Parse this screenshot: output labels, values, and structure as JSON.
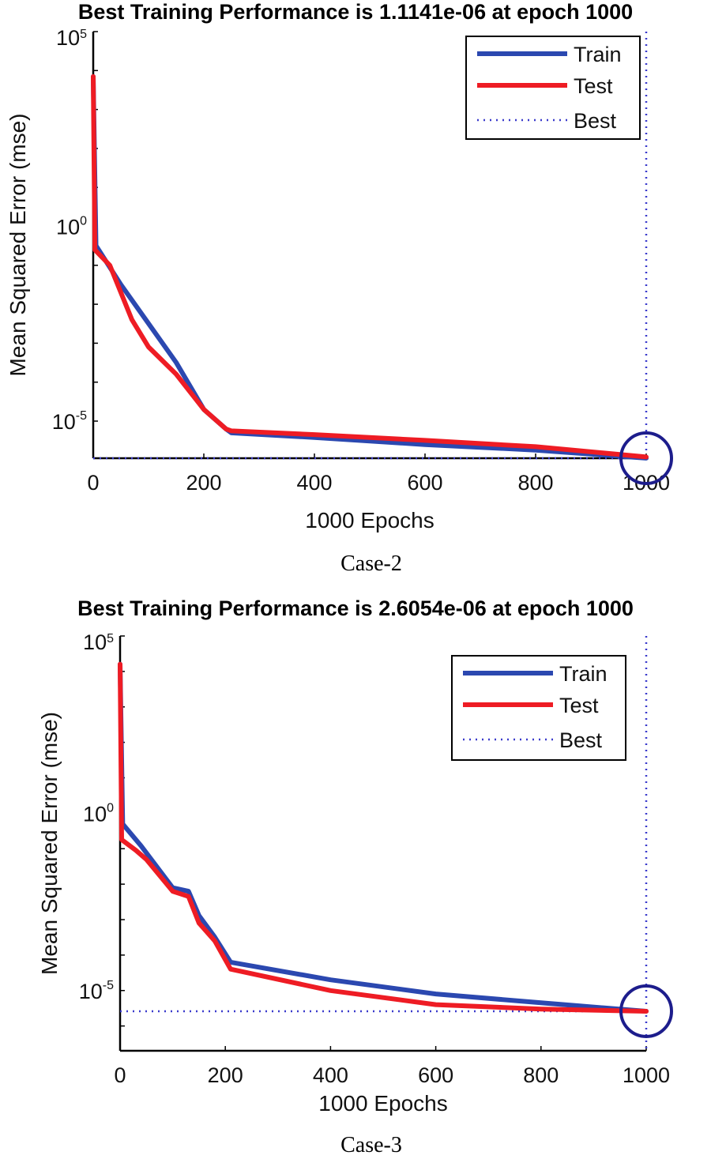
{
  "chart_data": [
    {
      "type": "line",
      "title": "Best Training Performance is 1.1141e-06 at epoch 1000",
      "xlabel": "1000 Epochs",
      "ylabel": "Mean Squared Error  (mse)",
      "caption": "Case-2",
      "yscale": "log",
      "xlim": [
        0,
        1000
      ],
      "ylim": [
        1.1141e-06,
        100000.0
      ],
      "xticks": [
        "0",
        "200",
        "400",
        "600",
        "800",
        "1000"
      ],
      "xtick_values": [
        0,
        200,
        400,
        600,
        800,
        1000
      ],
      "yticks": [
        {
          "base": "10",
          "exp": "5",
          "value": 100000.0
        },
        {
          "base": "10",
          "exp": "0",
          "value": 1
        },
        {
          "base": "10",
          "exp": "-5",
          "value": 1e-05
        }
      ],
      "legend": {
        "position": "top-right",
        "entries": [
          "Train",
          "Test",
          "Best"
        ]
      },
      "best": {
        "epoch": 1000,
        "value": 1.1141e-06
      },
      "colors": {
        "train": "#2b48b0",
        "test": "#ee1c24",
        "best": "#3a3acc",
        "circle": "#1d1d8c"
      },
      "series": [
        {
          "name": "Train",
          "x": [
            0,
            5,
            50,
            100,
            150,
            200,
            240,
            250,
            400,
            600,
            800,
            1000
          ],
          "y": [
            7000.0,
            0.32,
            0.032,
            0.0032,
            0.00032,
            2e-05,
            6.3e-06,
            5e-06,
            3.8e-06,
            2.5e-06,
            1.8e-06,
            1.12e-06
          ]
        },
        {
          "name": "Test",
          "x": [
            0,
            3,
            30,
            70,
            100,
            150,
            200,
            240,
            250,
            400,
            600,
            800,
            1000
          ],
          "y": [
            7000.0,
            0.25,
            0.1,
            0.004,
            0.0008,
            0.00016,
            2e-05,
            6.3e-06,
            5.6e-06,
            4.5e-06,
            3.2e-06,
            2.2e-06,
            1.2e-06
          ]
        }
      ]
    },
    {
      "type": "line",
      "title": "Best Training Performance is 2.6054e-06 at epoch 1000",
      "xlabel": "1000 Epochs",
      "ylabel": "Mean Squared Error  (mse)",
      "caption": "Case-3",
      "yscale": "log",
      "xlim": [
        0,
        1000
      ],
      "ylim": [
        2e-07,
        100000.0
      ],
      "xticks": [
        "0",
        "200",
        "400",
        "600",
        "800",
        "1000"
      ],
      "xtick_values": [
        0,
        200,
        400,
        600,
        800,
        1000
      ],
      "yticks": [
        {
          "base": "10",
          "exp": "5",
          "value": 100000.0
        },
        {
          "base": "10",
          "exp": "0",
          "value": 1
        },
        {
          "base": "10",
          "exp": "-5",
          "value": 1e-05
        }
      ],
      "legend": {
        "position": "top-right",
        "entries": [
          "Train",
          "Test",
          "Best"
        ]
      },
      "best": {
        "epoch": 1000,
        "value": 2.6054e-06
      },
      "colors": {
        "train": "#2b48b0",
        "test": "#ee1c24",
        "best": "#3a3acc",
        "circle": "#1d1d8c"
      },
      "series": [
        {
          "name": "Train",
          "x": [
            0,
            5,
            40,
            100,
            130,
            150,
            180,
            210,
            400,
            600,
            800,
            1000
          ],
          "y": [
            16000.0,
            0.5,
            0.12,
            0.0079,
            0.0063,
            0.0013,
            0.00032,
            6.3e-05,
            2e-05,
            8e-06,
            4.5e-06,
            2.6e-06
          ]
        },
        {
          "name": "Test",
          "x": [
            0,
            3,
            30,
            50,
            100,
            130,
            150,
            180,
            210,
            400,
            600,
            800,
            1000
          ],
          "y": [
            16000.0,
            0.18,
            0.09,
            0.05,
            0.0063,
            0.0045,
            0.0008,
            0.00025,
            4e-05,
            1e-05,
            4e-06,
            3e-06,
            2.6e-06
          ]
        }
      ]
    }
  ]
}
